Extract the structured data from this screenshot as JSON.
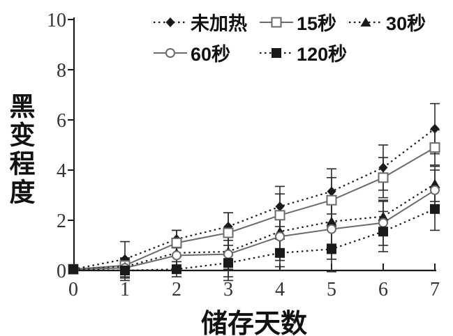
{
  "figure": {
    "background": "#ffffff",
    "ink_color": "#1a1a1a",
    "line_gray": "#6b6b6b",
    "errorbar_color": "#2b2b2b"
  },
  "chart_data": {
    "type": "line",
    "title": "",
    "xlabel": "储存天数",
    "ylabel": "黑变程度",
    "x": [
      0,
      1,
      2,
      3,
      4,
      5,
      6,
      7
    ],
    "xlim": [
      0,
      7
    ],
    "ylim": [
      0,
      10
    ],
    "yticks": [
      0,
      2,
      4,
      6,
      8,
      10
    ],
    "grid": false,
    "error_bars": true,
    "legend_position": "top-inside",
    "legend_rows": [
      3,
      2
    ],
    "series": [
      {
        "name": "未加热",
        "line_style": "dotted",
        "marker": "filled-diamond",
        "values": [
          0.05,
          0.45,
          1.25,
          1.75,
          2.55,
          3.15,
          4.1,
          5.65
        ],
        "errors": [
          0,
          0.7,
          0.35,
          0.55,
          0.8,
          0.9,
          0.9,
          1.0
        ]
      },
      {
        "name": "15秒",
        "line_style": "solid",
        "marker": "open-square",
        "values": [
          0.05,
          0.2,
          1.1,
          1.5,
          2.2,
          2.8,
          3.7,
          4.9
        ],
        "errors": [
          0,
          0.3,
          0.5,
          0.8,
          0.85,
          0.9,
          0.8,
          0.7
        ]
      },
      {
        "name": "30秒",
        "line_style": "dotted",
        "marker": "filled-triangle",
        "values": [
          0.05,
          0.15,
          0.7,
          0.75,
          1.55,
          1.95,
          2.15,
          3.45
        ],
        "errors": [
          0,
          0.3,
          0.5,
          0.7,
          0.8,
          0.9,
          0.6,
          0.7
        ]
      },
      {
        "name": "60秒",
        "line_style": "solid",
        "marker": "open-circle",
        "values": [
          0.05,
          0.1,
          0.6,
          0.65,
          1.35,
          1.65,
          1.9,
          3.2
        ],
        "errors": [
          0,
          0.4,
          0.5,
          0.9,
          0.95,
          1.2,
          0.9,
          0.8
        ]
      },
      {
        "name": "120秒",
        "line_style": "dotted",
        "marker": "filled-square",
        "values": [
          0.05,
          0.0,
          0.05,
          0.3,
          0.7,
          0.85,
          1.55,
          2.45
        ],
        "errors": [
          0,
          0.4,
          0.3,
          0.7,
          0.55,
          0.9,
          0.8,
          0.85
        ]
      }
    ]
  }
}
